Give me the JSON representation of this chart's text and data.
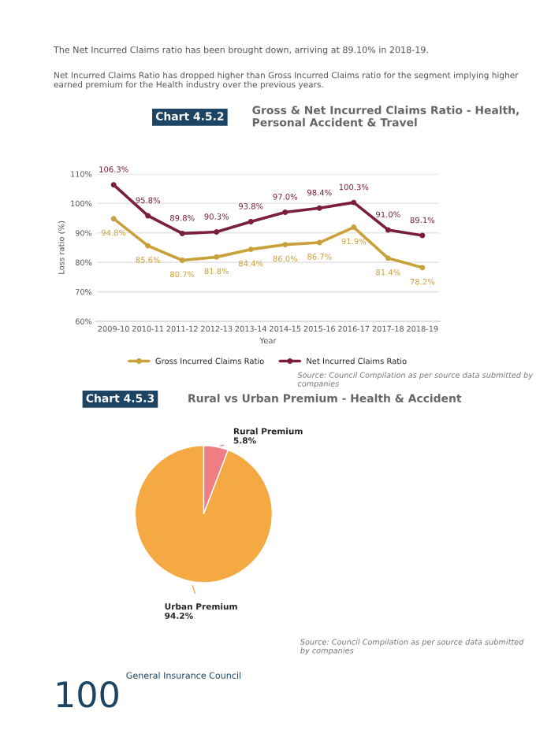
{
  "chart_data": [
    {
      "type": "line",
      "title": "Gross & Net Incurred Claims Ratio - Health, Personal Accident & Travel",
      "xlabel": "Year",
      "ylabel": "Loss ratio (%)",
      "annotations": [
        "The Net Incurred Claims ratio has been brought down, arriving at 89.10% in 2018-19.",
        "Net Incurred Claims Ratio has dropped higher than Gross Incurred Claims ratio for the segment implying higher earned premium for the Health industry over the previous years.",
        "Chart 4.5.2",
        "Source: Council Compilation as per source data submitted by companies"
      ],
      "categories": [
        "2009-10",
        "2010-11",
        "2011-12",
        "2012-13",
        "2013-14",
        "2014-15",
        "2015-16",
        "2016-17",
        "2017-18",
        "2018-19"
      ],
      "series": [
        {
          "name": "Gross Incurred Claims Ratio",
          "color": "#c9a13b",
          "values": [
            94.8,
            85.6,
            80.7,
            81.8,
            84.4,
            86.0,
            86.7,
            91.9,
            81.4,
            78.2
          ],
          "value_labels": [
            "94.8%",
            "85.6%",
            "80.7%",
            "81.8%",
            "84.4%",
            "86.0%",
            "86.7%",
            "91.9%",
            "81.4%",
            "78.2%"
          ]
        },
        {
          "name": "Net Incurred Claims Ratio",
          "color": "#7b1e3a",
          "values": [
            106.3,
            95.8,
            89.8,
            90.3,
            93.8,
            97.0,
            98.4,
            100.3,
            91.0,
            89.1
          ],
          "value_labels": [
            "106.3%",
            "95.8%",
            "89.8%",
            "90.3%",
            "93.8%",
            "97.0%",
            "98.4%",
            "100.3%",
            "91.0%",
            "89.1%"
          ]
        }
      ],
      "ylim": [
        60,
        110
      ],
      "yticks": [
        {
          "value": 60,
          "label": "60%"
        },
        {
          "value": 70,
          "label": "70%"
        },
        {
          "value": 80,
          "label": "80%"
        },
        {
          "value": 90,
          "label": "90%"
        },
        {
          "value": 100,
          "label": "100%"
        },
        {
          "value": 110,
          "label": "110%"
        }
      ],
      "grid": "y",
      "legend": "bottom",
      "marker": "circle",
      "line_style": "solid"
    },
    {
      "type": "pie",
      "title": "Rural vs Urban Premium - Health & Accident",
      "annotations": [
        "Chart 4.5.3",
        "Source: Council Compilation as per source data submitted by companies",
        "100",
        "General Insurance Council"
      ],
      "categories": [
        "Rural Premium",
        "Urban Premium"
      ],
      "values": [
        5.8,
        94.2
      ],
      "value_labels": [
        "5.8%",
        "94.2%"
      ],
      "colors": [
        "#ef7d84",
        "#f4a942"
      ]
    }
  ]
}
